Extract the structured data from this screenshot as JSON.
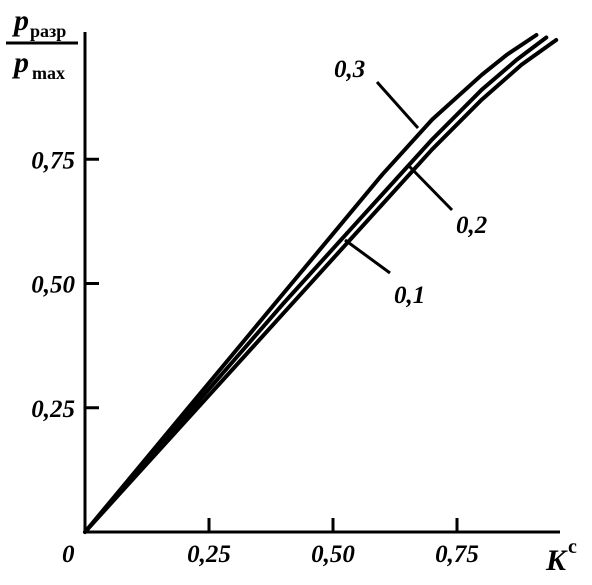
{
  "chart_data": {
    "type": "line",
    "ylabel": {
      "numerator": "p",
      "numerator_sub": "разр",
      "denominator": "p",
      "denominator_sub": "max"
    },
    "xlabel": {
      "main": "K",
      "sup": "c"
    },
    "origin_label": "0",
    "xlim": [
      0,
      1.0
    ],
    "ylim": [
      0,
      1.0
    ],
    "x_ticks": [
      {
        "value": 0.25,
        "label": "0,25"
      },
      {
        "value": 0.5,
        "label": "0,50"
      },
      {
        "value": 0.75,
        "label": "0,75"
      }
    ],
    "y_ticks": [
      {
        "value": 0.25,
        "label": "0,25"
      },
      {
        "value": 0.5,
        "label": "0,50"
      },
      {
        "value": 0.75,
        "label": "0,75"
      }
    ],
    "series": [
      {
        "name": "0,3",
        "points": [
          [
            0,
            0
          ],
          [
            0.1,
            0.12
          ],
          [
            0.2,
            0.24
          ],
          [
            0.3,
            0.36
          ],
          [
            0.4,
            0.48
          ],
          [
            0.5,
            0.6
          ],
          [
            0.6,
            0.72
          ],
          [
            0.7,
            0.83
          ],
          [
            0.8,
            0.92
          ],
          [
            0.85,
            0.96
          ],
          [
            0.91,
            1.0
          ]
        ]
      },
      {
        "name": "0,2",
        "points": [
          [
            0,
            0
          ],
          [
            0.1,
            0.115
          ],
          [
            0.2,
            0.23
          ],
          [
            0.3,
            0.345
          ],
          [
            0.4,
            0.46
          ],
          [
            0.5,
            0.57
          ],
          [
            0.6,
            0.68
          ],
          [
            0.7,
            0.79
          ],
          [
            0.8,
            0.89
          ],
          [
            0.87,
            0.95
          ],
          [
            0.93,
            0.995
          ]
        ]
      },
      {
        "name": "0,1",
        "points": [
          [
            0,
            0
          ],
          [
            0.1,
            0.11
          ],
          [
            0.2,
            0.22
          ],
          [
            0.3,
            0.33
          ],
          [
            0.4,
            0.44
          ],
          [
            0.5,
            0.55
          ],
          [
            0.6,
            0.66
          ],
          [
            0.7,
            0.77
          ],
          [
            0.8,
            0.87
          ],
          [
            0.88,
            0.94
          ],
          [
            0.95,
            0.99
          ]
        ]
      }
    ]
  }
}
